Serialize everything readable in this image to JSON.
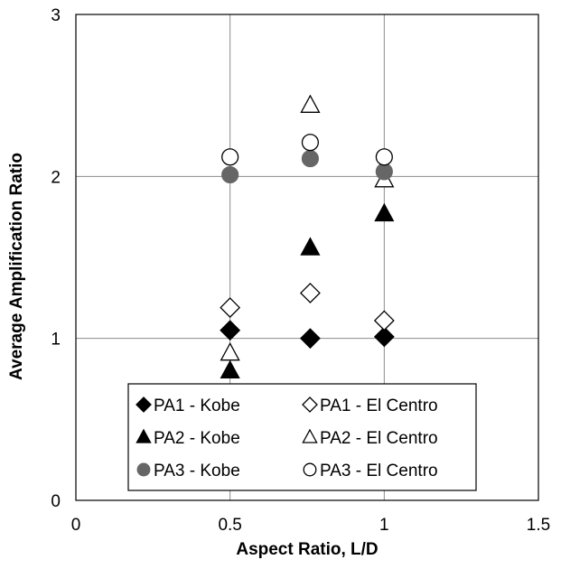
{
  "chart_data": {
    "type": "scatter",
    "xlabel": "Aspect Ratio, L/D",
    "ylabel": "Average Amplification Ratio",
    "xlim": [
      0,
      1.5
    ],
    "ylim": [
      0,
      3
    ],
    "x_ticks": [
      0,
      0.5,
      1,
      1.5
    ],
    "x_tick_labels": [
      "0",
      "0.5",
      "1",
      "1.5"
    ],
    "y_ticks": [
      0,
      1,
      2,
      3
    ],
    "y_tick_labels": [
      "0",
      "1",
      "2",
      "3"
    ],
    "grid": true,
    "legend_placement": "bottom-center",
    "series": [
      {
        "name": "PA1 - Kobe",
        "marker": "diamond",
        "fill": "#000000",
        "stroke": "#000000",
        "points": [
          [
            0.5,
            1.05
          ],
          [
            0.76,
            1.0
          ],
          [
            1.0,
            1.01
          ]
        ]
      },
      {
        "name": "PA1 - El Centro",
        "marker": "diamond",
        "fill": "#ffffff",
        "stroke": "#000000",
        "points": [
          [
            0.5,
            1.19
          ],
          [
            0.76,
            1.28
          ],
          [
            1.0,
            1.11
          ]
        ]
      },
      {
        "name": "PA2 - Kobe",
        "marker": "triangle",
        "fill": "#000000",
        "stroke": "#000000",
        "points": [
          [
            0.5,
            0.8
          ],
          [
            0.76,
            1.56
          ],
          [
            1.0,
            1.77
          ]
        ]
      },
      {
        "name": "PA2 - El Centro",
        "marker": "triangle",
        "fill": "#ffffff",
        "stroke": "#000000",
        "points": [
          [
            0.5,
            0.91
          ],
          [
            0.76,
            2.44
          ],
          [
            1.0,
            1.98
          ]
        ]
      },
      {
        "name": "PA3 - Kobe",
        "marker": "circle",
        "fill": "#666666",
        "stroke": "#666666",
        "points": [
          [
            0.5,
            2.01
          ],
          [
            0.76,
            2.11
          ],
          [
            1.0,
            2.03
          ]
        ]
      },
      {
        "name": "PA3 - El Centro",
        "marker": "circle",
        "fill": "#ffffff",
        "stroke": "#000000",
        "points": [
          [
            0.5,
            2.12
          ],
          [
            0.76,
            2.21
          ],
          [
            1.0,
            2.12
          ]
        ]
      }
    ]
  }
}
